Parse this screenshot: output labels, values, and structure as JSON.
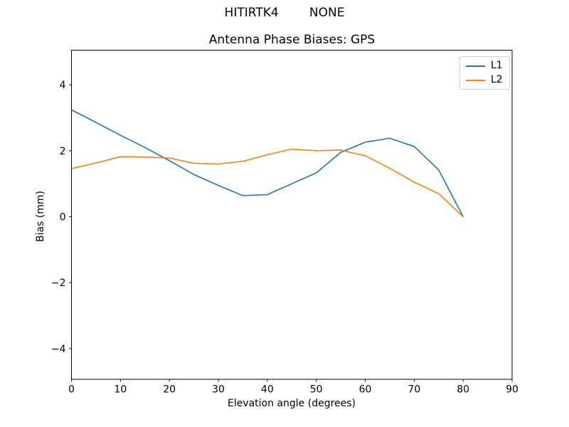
{
  "figure": {
    "suptitle": "HITIRTK4        NONE"
  },
  "chart_data": {
    "type": "line",
    "title": "Antenna Phase Biases: GPS",
    "xlabel": "Elevation angle (degrees)",
    "ylabel": "Bias (mm)",
    "xlim": [
      0,
      90
    ],
    "ylim": [
      -4.93,
      5.05
    ],
    "xticks": [
      0,
      10,
      20,
      30,
      40,
      50,
      60,
      70,
      80,
      90
    ],
    "yticks": [
      -4,
      -2,
      0,
      2,
      4
    ],
    "grid": false,
    "legend_position": "upper right",
    "background_color": "#ffffff",
    "spine_color": "#000000",
    "x": [
      0,
      5,
      10,
      15,
      20,
      25,
      30,
      35,
      40,
      45,
      50,
      55,
      60,
      65,
      70,
      75,
      80
    ],
    "series": [
      {
        "name": "L1",
        "color": "#1f77b4",
        "values": [
          3.24,
          2.86,
          2.47,
          2.1,
          1.7,
          1.28,
          0.95,
          0.64,
          0.67,
          1.0,
          1.33,
          1.95,
          2.26,
          2.38,
          2.13,
          1.42,
          0.0
        ]
      },
      {
        "name": "L2",
        "color": "#ff7f0e",
        "values": [
          1.46,
          1.63,
          1.82,
          1.81,
          1.78,
          1.62,
          1.6,
          1.68,
          1.88,
          2.05,
          2.0,
          2.02,
          1.85,
          1.47,
          1.05,
          0.7,
          0.0
        ]
      }
    ]
  }
}
